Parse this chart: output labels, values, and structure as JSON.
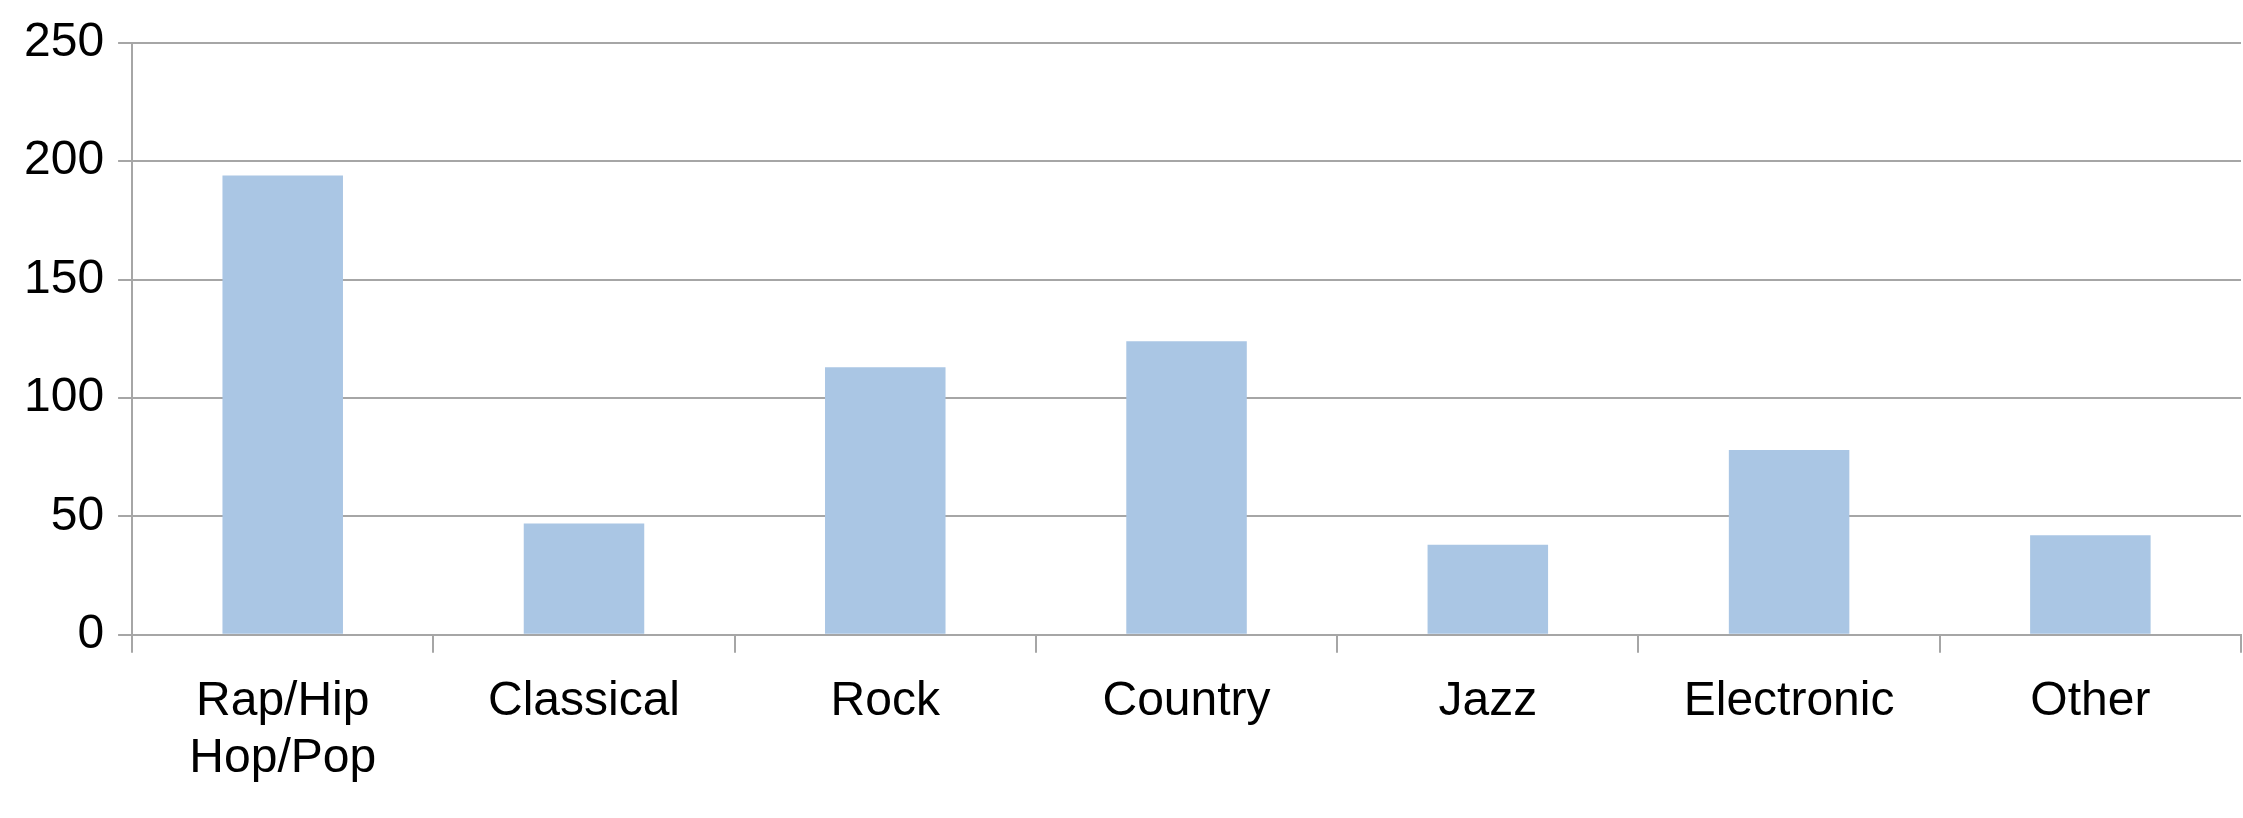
{
  "chart_data": {
    "type": "bar",
    "categories": [
      "Rap/Hip Hop/Pop",
      "Classical",
      "Rock",
      "Country",
      "Jazz",
      "Electronic",
      "Other"
    ],
    "values": [
      194,
      47,
      113,
      124,
      38,
      78,
      42
    ],
    "color": "#aac6e4",
    "ylim": [
      0,
      250
    ],
    "yticks": [
      0,
      50,
      100,
      150,
      200,
      250
    ],
    "grid": "y",
    "legend": false
  }
}
